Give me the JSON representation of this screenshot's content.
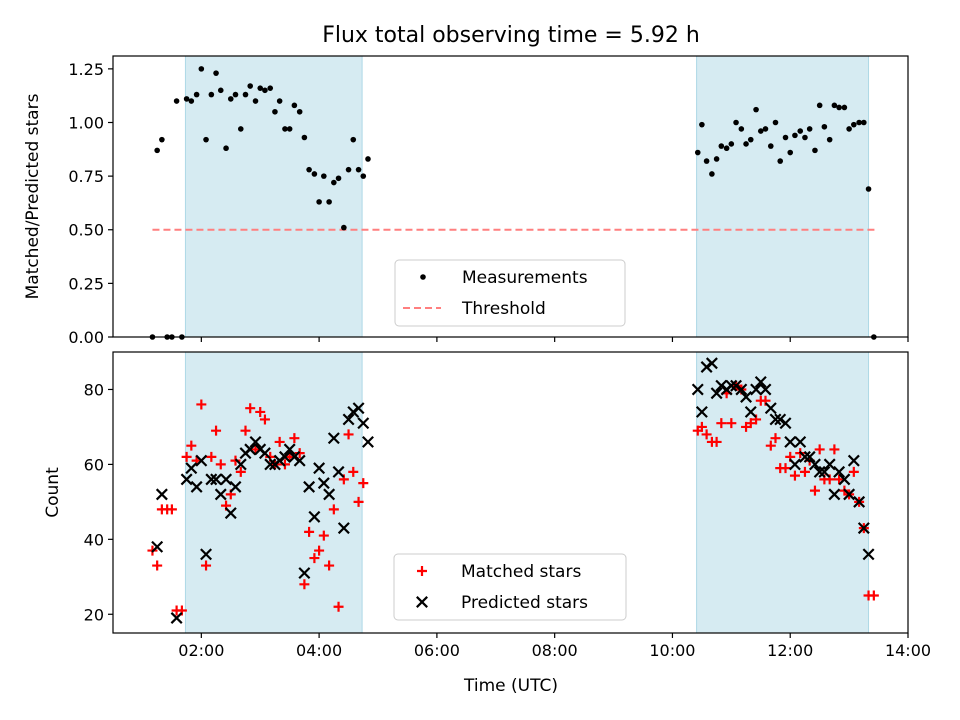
{
  "figure": {
    "title": "Flux total observing time = 5.92 h",
    "xlabel": "Time (UTC)"
  },
  "colors": {
    "shade": "#add8e6",
    "measurement": "#000000",
    "threshold": "#ff7f7f",
    "matched": "#ff0000",
    "predicted": "#000000",
    "axis": "#000000"
  },
  "chart_data": [
    {
      "type": "scatter",
      "ylabel": "Matched/Predicted stars",
      "xlim": [
        0.5,
        14.0
      ],
      "ylim": [
        0.0,
        1.31
      ],
      "x_ticks": [
        2,
        4,
        6,
        8,
        10,
        12,
        14
      ],
      "y_ticks": [
        0.0,
        0.25,
        0.5,
        0.75,
        1.0,
        1.25
      ],
      "y_tick_labels": [
        "0.00",
        "0.25",
        "0.50",
        "0.75",
        "1.00",
        "1.25"
      ],
      "shaded_spans": [
        [
          1.73,
          4.73
        ],
        [
          10.41,
          13.33
        ]
      ],
      "legend": {
        "placement": "lower center",
        "entries": [
          "Measurements",
          "Threshold"
        ]
      },
      "threshold": {
        "name": "Threshold",
        "y": 0.5,
        "x": [
          1.17,
          13.43
        ]
      },
      "series": [
        {
          "name": "Measurements",
          "points": [
            [
              1.17,
              0.0
            ],
            [
              1.25,
              0.87
            ],
            [
              1.33,
              0.92
            ],
            [
              1.42,
              0.0
            ],
            [
              1.5,
              0.0
            ],
            [
              1.58,
              1.1
            ],
            [
              1.67,
              0.0
            ],
            [
              1.75,
              1.11
            ],
            [
              1.83,
              1.1
            ],
            [
              1.92,
              1.13
            ],
            [
              2.0,
              1.25
            ],
            [
              2.08,
              0.92
            ],
            [
              2.17,
              1.13
            ],
            [
              2.25,
              1.23
            ],
            [
              2.33,
              1.15
            ],
            [
              2.42,
              0.88
            ],
            [
              2.5,
              1.11
            ],
            [
              2.58,
              1.13
            ],
            [
              2.67,
              0.97
            ],
            [
              2.75,
              1.13
            ],
            [
              2.83,
              1.17
            ],
            [
              2.92,
              1.1
            ],
            [
              3.0,
              1.16
            ],
            [
              3.08,
              1.15
            ],
            [
              3.17,
              1.16
            ],
            [
              3.25,
              1.05
            ],
            [
              3.33,
              1.1
            ],
            [
              3.42,
              0.97
            ],
            [
              3.5,
              0.97
            ],
            [
              3.58,
              1.08
            ],
            [
              3.67,
              1.05
            ],
            [
              3.75,
              0.93
            ],
            [
              3.83,
              0.78
            ],
            [
              3.92,
              0.76
            ],
            [
              4.0,
              0.63
            ],
            [
              4.08,
              0.75
            ],
            [
              4.17,
              0.63
            ],
            [
              4.25,
              0.72
            ],
            [
              4.33,
              0.74
            ],
            [
              4.42,
              0.51
            ],
            [
              4.5,
              0.78
            ],
            [
              4.58,
              0.92
            ],
            [
              4.67,
              0.78
            ],
            [
              4.75,
              0.75
            ],
            [
              4.83,
              0.83
            ],
            [
              10.43,
              0.86
            ],
            [
              10.5,
              0.99
            ],
            [
              10.58,
              0.82
            ],
            [
              10.67,
              0.76
            ],
            [
              10.75,
              0.83
            ],
            [
              10.83,
              0.89
            ],
            [
              10.92,
              0.88
            ],
            [
              11.0,
              0.9
            ],
            [
              11.08,
              1.0
            ],
            [
              11.17,
              0.97
            ],
            [
              11.25,
              0.9
            ],
            [
              11.33,
              0.92
            ],
            [
              11.42,
              1.06
            ],
            [
              11.5,
              0.96
            ],
            [
              11.58,
              0.97
            ],
            [
              11.67,
              0.89
            ],
            [
              11.75,
              1.0
            ],
            [
              11.83,
              0.82
            ],
            [
              11.92,
              0.93
            ],
            [
              12.0,
              0.86
            ],
            [
              12.08,
              0.94
            ],
            [
              12.17,
              0.96
            ],
            [
              12.25,
              0.93
            ],
            [
              12.33,
              0.97
            ],
            [
              12.42,
              0.87
            ],
            [
              12.5,
              1.08
            ],
            [
              12.58,
              0.98
            ],
            [
              12.67,
              0.92
            ],
            [
              12.75,
              1.08
            ],
            [
              12.83,
              1.07
            ],
            [
              12.92,
              1.07
            ],
            [
              13.0,
              0.97
            ],
            [
              13.08,
              0.99
            ],
            [
              13.17,
              1.0
            ],
            [
              13.25,
              1.0
            ],
            [
              13.33,
              0.69
            ],
            [
              13.42,
              0.0
            ]
          ]
        }
      ]
    },
    {
      "type": "scatter",
      "ylabel": "Count",
      "xlim": [
        0.5,
        14.0
      ],
      "ylim": [
        15,
        90
      ],
      "x_ticks": [
        2,
        4,
        6,
        8,
        10,
        12,
        14
      ],
      "x_tick_labels": [
        "02:00",
        "04:00",
        "06:00",
        "08:00",
        "10:00",
        "12:00",
        "14:00"
      ],
      "y_ticks": [
        20,
        40,
        60,
        80
      ],
      "y_tick_labels": [
        "20",
        "40",
        "60",
        "80"
      ],
      "shaded_spans": [
        [
          1.73,
          4.73
        ],
        [
          10.41,
          13.33
        ]
      ],
      "legend": {
        "placement": "lower center",
        "entries": [
          "Matched stars",
          "Predicted stars"
        ]
      },
      "series": [
        {
          "name": "Matched stars",
          "points": [
            [
              1.17,
              37
            ],
            [
              1.25,
              33
            ],
            [
              1.33,
              48
            ],
            [
              1.42,
              48
            ],
            [
              1.5,
              48
            ],
            [
              1.58,
              21
            ],
            [
              1.67,
              21
            ],
            [
              1.75,
              62
            ],
            [
              1.83,
              65
            ],
            [
              1.92,
              61
            ],
            [
              2.0,
              76
            ],
            [
              2.08,
              33
            ],
            [
              2.17,
              62
            ],
            [
              2.25,
              69
            ],
            [
              2.33,
              60
            ],
            [
              2.42,
              49
            ],
            [
              2.5,
              52
            ],
            [
              2.58,
              61
            ],
            [
              2.67,
              58
            ],
            [
              2.75,
              69
            ],
            [
              2.83,
              75
            ],
            [
              2.92,
              64
            ],
            [
              3.0,
              74
            ],
            [
              3.08,
              72
            ],
            [
              3.17,
              62
            ],
            [
              3.25,
              60
            ],
            [
              3.33,
              66
            ],
            [
              3.42,
              60
            ],
            [
              3.5,
              62
            ],
            [
              3.58,
              67
            ],
            [
              3.67,
              63
            ],
            [
              3.75,
              28
            ],
            [
              3.83,
              42
            ],
            [
              3.92,
              35
            ],
            [
              4.0,
              37
            ],
            [
              4.08,
              41
            ],
            [
              4.17,
              33
            ],
            [
              4.25,
              48
            ],
            [
              4.33,
              22
            ],
            [
              4.42,
              56
            ],
            [
              4.5,
              68
            ],
            [
              4.58,
              58
            ],
            [
              4.67,
              50
            ],
            [
              4.75,
              55
            ],
            [
              10.43,
              69
            ],
            [
              10.5,
              70
            ],
            [
              10.58,
              68
            ],
            [
              10.67,
              66
            ],
            [
              10.75,
              66
            ],
            [
              10.83,
              71
            ],
            [
              10.92,
              79
            ],
            [
              11.0,
              71
            ],
            [
              11.08,
              81
            ],
            [
              11.17,
              80
            ],
            [
              11.25,
              70
            ],
            [
              11.33,
              71
            ],
            [
              11.42,
              72
            ],
            [
              11.5,
              77
            ],
            [
              11.58,
              77
            ],
            [
              11.67,
              65
            ],
            [
              11.75,
              67
            ],
            [
              11.83,
              59
            ],
            [
              11.92,
              59
            ],
            [
              12.0,
              62
            ],
            [
              12.08,
              57
            ],
            [
              12.17,
              63
            ],
            [
              12.25,
              58
            ],
            [
              12.33,
              61
            ],
            [
              12.42,
              53
            ],
            [
              12.5,
              64
            ],
            [
              12.58,
              56
            ],
            [
              12.67,
              56
            ],
            [
              12.75,
              64
            ],
            [
              12.83,
              56
            ],
            [
              12.92,
              53
            ],
            [
              13.0,
              52
            ],
            [
              13.08,
              58
            ],
            [
              13.17,
              50
            ],
            [
              13.25,
              43
            ],
            [
              13.33,
              25
            ],
            [
              13.42,
              25
            ]
          ]
        },
        {
          "name": "Predicted stars",
          "points": [
            [
              1.25,
              38
            ],
            [
              1.33,
              52
            ],
            [
              1.58,
              19
            ],
            [
              1.75,
              56
            ],
            [
              1.83,
              59
            ],
            [
              1.92,
              54
            ],
            [
              2.0,
              61
            ],
            [
              2.08,
              36
            ],
            [
              2.17,
              56
            ],
            [
              2.25,
              56
            ],
            [
              2.33,
              52
            ],
            [
              2.42,
              56
            ],
            [
              2.5,
              47
            ],
            [
              2.58,
              54
            ],
            [
              2.67,
              60
            ],
            [
              2.75,
              63
            ],
            [
              2.83,
              64
            ],
            [
              2.92,
              66
            ],
            [
              3.0,
              64
            ],
            [
              3.08,
              63
            ],
            [
              3.17,
              60
            ],
            [
              3.25,
              60
            ],
            [
              3.33,
              61
            ],
            [
              3.42,
              62
            ],
            [
              3.5,
              64
            ],
            [
              3.58,
              62
            ],
            [
              3.67,
              61
            ],
            [
              3.75,
              31
            ],
            [
              3.83,
              54
            ],
            [
              3.92,
              46
            ],
            [
              4.0,
              59
            ],
            [
              4.08,
              55
            ],
            [
              4.17,
              52
            ],
            [
              4.25,
              67
            ],
            [
              4.33,
              58
            ],
            [
              4.42,
              43
            ],
            [
              4.5,
              72
            ],
            [
              4.58,
              74
            ],
            [
              4.67,
              75
            ],
            [
              4.75,
              71
            ],
            [
              4.83,
              66
            ],
            [
              10.43,
              80
            ],
            [
              10.5,
              74
            ],
            [
              10.58,
              86
            ],
            [
              10.67,
              87
            ],
            [
              10.75,
              79
            ],
            [
              10.83,
              81
            ],
            [
              10.92,
              80
            ],
            [
              11.0,
              81
            ],
            [
              11.08,
              81
            ],
            [
              11.17,
              80
            ],
            [
              11.25,
              78
            ],
            [
              11.33,
              74
            ],
            [
              11.42,
              80
            ],
            [
              11.5,
              82
            ],
            [
              11.58,
              80
            ],
            [
              11.67,
              75
            ],
            [
              11.75,
              72
            ],
            [
              11.83,
              72
            ],
            [
              11.92,
              71
            ],
            [
              12.0,
              66
            ],
            [
              12.08,
              60
            ],
            [
              12.17,
              66
            ],
            [
              12.25,
              62
            ],
            [
              12.33,
              62
            ],
            [
              12.42,
              60
            ],
            [
              12.5,
              58
            ],
            [
              12.58,
              58
            ],
            [
              12.67,
              60
            ],
            [
              12.75,
              52
            ],
            [
              12.83,
              58
            ],
            [
              12.92,
              56
            ],
            [
              13.0,
              52
            ],
            [
              13.08,
              61
            ],
            [
              13.17,
              50
            ],
            [
              13.25,
              43
            ],
            [
              13.33,
              36
            ]
          ]
        }
      ]
    }
  ]
}
